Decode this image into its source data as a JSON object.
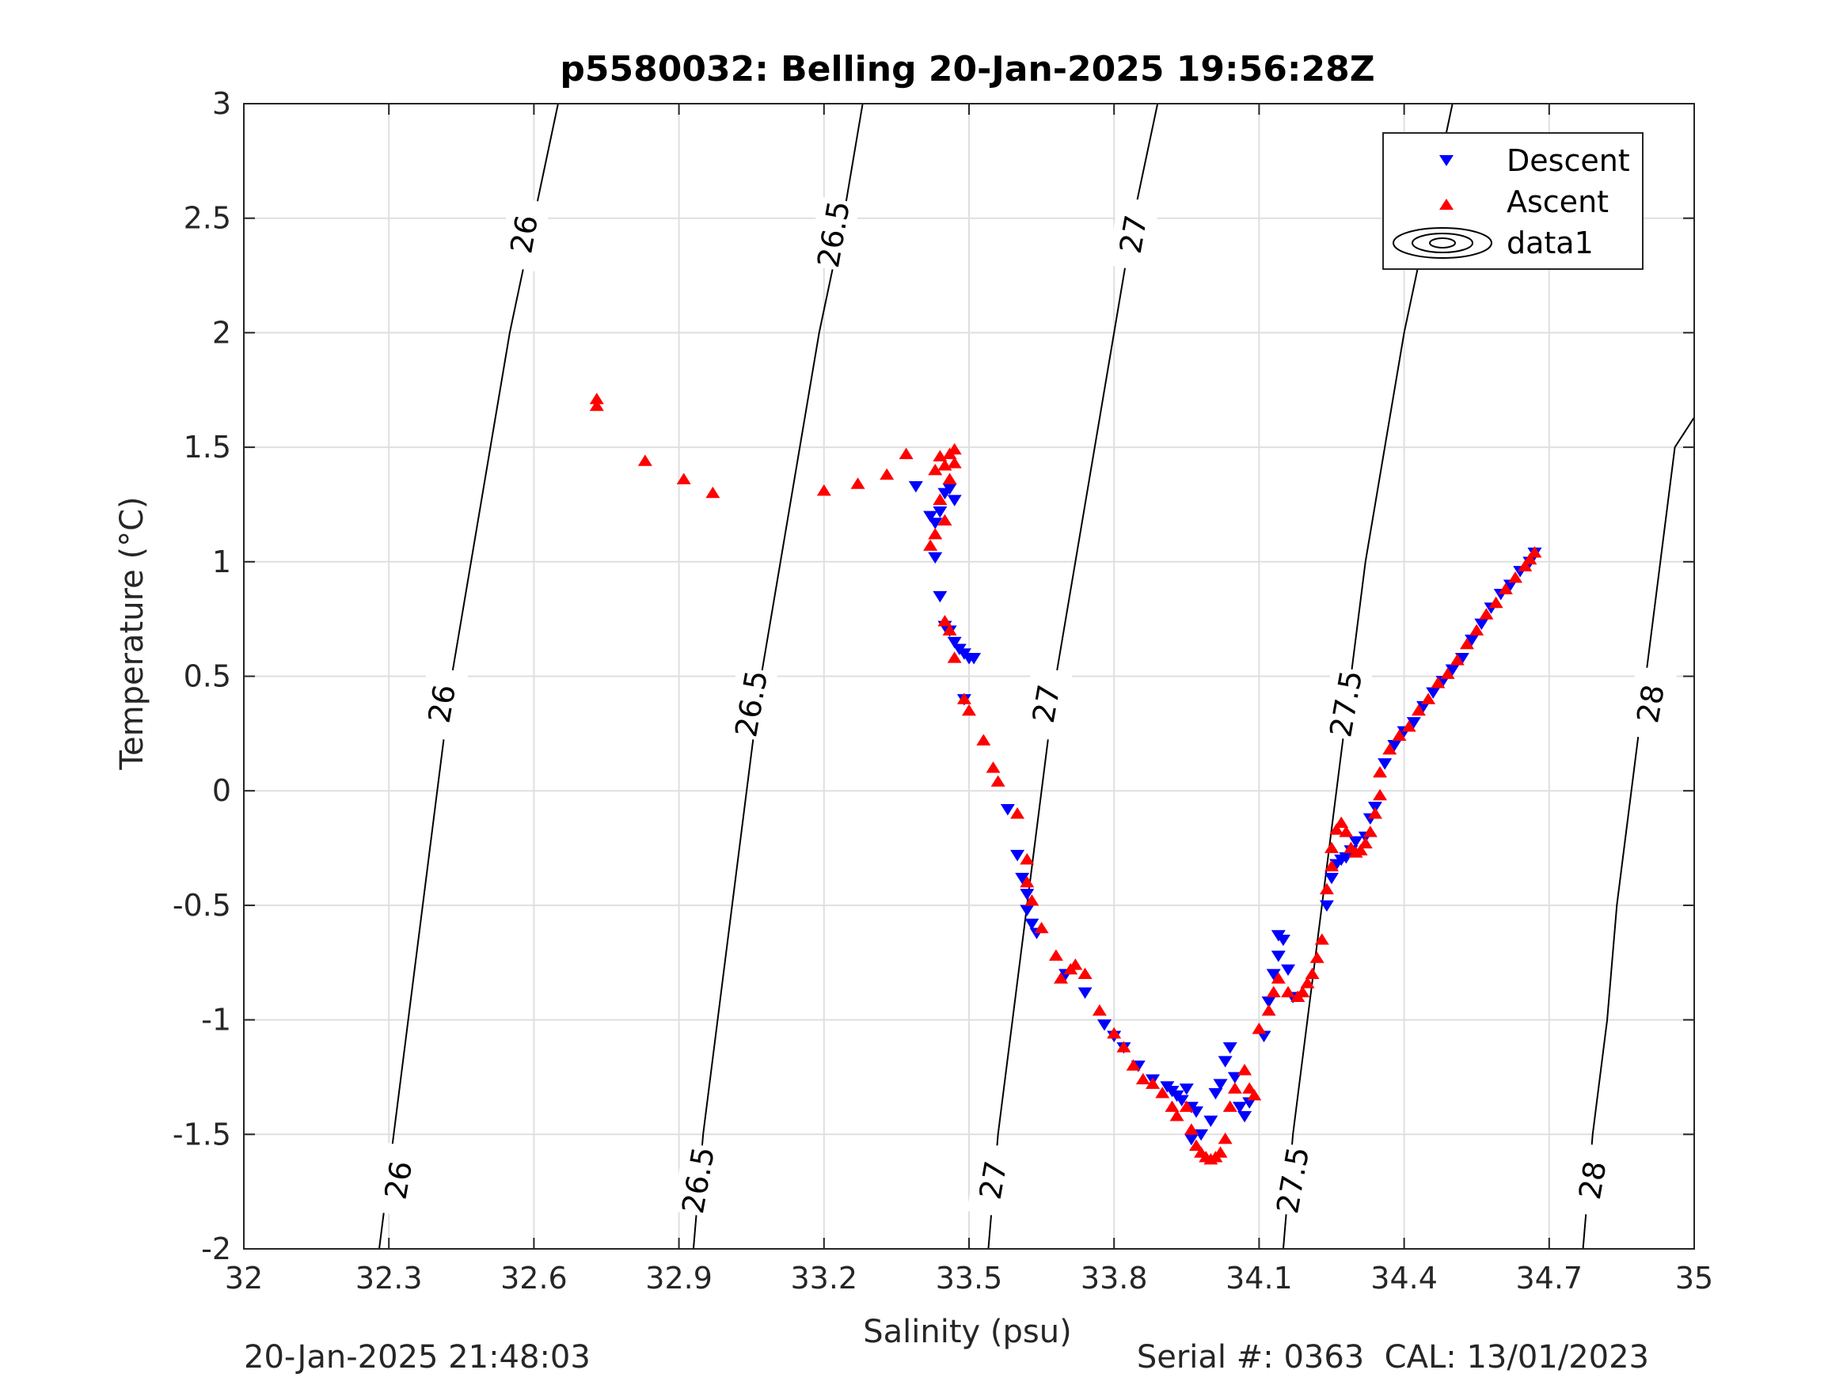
{
  "chart_data": {
    "type": "scatter",
    "title": "p5580032: Belling 20-Jan-2025 19:56:28Z",
    "xlabel": "Salinity (psu)",
    "ylabel": "Temperature (°C)",
    "xlim": [
      32,
      35
    ],
    "ylim": [
      -2,
      3
    ],
    "xticks": [
      "32",
      "32.3",
      "32.6",
      "32.9",
      "33.2",
      "33.5",
      "33.8",
      "34.1",
      "34.4",
      "34.7",
      "35"
    ],
    "yticks": [
      "3",
      "2.5",
      "2",
      "1.5",
      "1",
      "0.5",
      "0",
      "-0.5",
      "-1",
      "-1.5",
      "-2"
    ],
    "grid": true,
    "legend_position": "top-right",
    "legend": [
      "Descent",
      "Ascent",
      "data1"
    ],
    "series": [
      {
        "name": "Descent",
        "marker": "triangle-down",
        "color": "#0000ff",
        "points": [
          [
            33.39,
            1.33
          ],
          [
            33.42,
            1.2
          ],
          [
            33.43,
            1.17
          ],
          [
            33.44,
            1.22
          ],
          [
            33.45,
            1.3
          ],
          [
            33.46,
            1.32
          ],
          [
            33.47,
            1.27
          ],
          [
            33.43,
            1.02
          ],
          [
            33.44,
            0.85
          ],
          [
            33.45,
            0.72
          ],
          [
            33.46,
            0.7
          ],
          [
            33.47,
            0.65
          ],
          [
            33.48,
            0.62
          ],
          [
            33.49,
            0.6
          ],
          [
            33.5,
            0.58
          ],
          [
            33.51,
            0.58
          ],
          [
            33.49,
            0.4
          ],
          [
            33.58,
            -0.08
          ],
          [
            33.6,
            -0.28
          ],
          [
            33.61,
            -0.38
          ],
          [
            33.62,
            -0.45
          ],
          [
            33.62,
            -0.52
          ],
          [
            33.63,
            -0.58
          ],
          [
            33.64,
            -0.62
          ],
          [
            33.7,
            -0.8
          ],
          [
            33.74,
            -0.88
          ],
          [
            33.78,
            -1.02
          ],
          [
            33.8,
            -1.07
          ],
          [
            33.82,
            -1.12
          ],
          [
            33.85,
            -1.2
          ],
          [
            33.88,
            -1.26
          ],
          [
            33.91,
            -1.29
          ],
          [
            33.92,
            -1.31
          ],
          [
            33.93,
            -1.33
          ],
          [
            33.94,
            -1.35
          ],
          [
            33.95,
            -1.3
          ],
          [
            33.96,
            -1.38
          ],
          [
            33.97,
            -1.4
          ],
          [
            33.96,
            -1.52
          ],
          [
            33.98,
            -1.5
          ],
          [
            34.0,
            -1.44
          ],
          [
            34.01,
            -1.32
          ],
          [
            34.02,
            -1.28
          ],
          [
            34.03,
            -1.18
          ],
          [
            34.04,
            -1.12
          ],
          [
            34.05,
            -1.25
          ],
          [
            34.06,
            -1.38
          ],
          [
            34.07,
            -1.42
          ],
          [
            34.08,
            -1.36
          ],
          [
            34.11,
            -1.07
          ],
          [
            34.12,
            -0.92
          ],
          [
            34.13,
            -0.8
          ],
          [
            34.14,
            -0.72
          ],
          [
            34.14,
            -0.63
          ],
          [
            34.15,
            -0.65
          ],
          [
            34.16,
            -0.78
          ],
          [
            34.17,
            -0.9
          ],
          [
            34.24,
            -0.5
          ],
          [
            34.25,
            -0.38
          ],
          [
            34.26,
            -0.32
          ],
          [
            34.27,
            -0.3
          ],
          [
            34.28,
            -0.29
          ],
          [
            34.29,
            -0.26
          ],
          [
            34.3,
            -0.22
          ],
          [
            34.32,
            -0.2
          ],
          [
            34.33,
            -0.12
          ],
          [
            34.34,
            -0.07
          ],
          [
            34.36,
            0.12
          ],
          [
            34.38,
            0.2
          ],
          [
            34.4,
            0.26
          ],
          [
            34.42,
            0.3
          ],
          [
            34.44,
            0.37
          ],
          [
            34.46,
            0.43
          ],
          [
            34.48,
            0.48
          ],
          [
            34.5,
            0.53
          ],
          [
            34.52,
            0.58
          ],
          [
            34.54,
            0.66
          ],
          [
            34.56,
            0.73
          ],
          [
            34.58,
            0.8
          ],
          [
            34.6,
            0.86
          ],
          [
            34.62,
            0.9
          ],
          [
            34.64,
            0.96
          ],
          [
            34.66,
            1.0
          ],
          [
            34.67,
            1.04
          ]
        ]
      },
      {
        "name": "Ascent",
        "marker": "triangle-up",
        "color": "#ff0000",
        "points": [
          [
            32.73,
            1.71
          ],
          [
            32.73,
            1.68
          ],
          [
            32.83,
            1.44
          ],
          [
            32.91,
            1.36
          ],
          [
            32.97,
            1.3
          ],
          [
            33.2,
            1.31
          ],
          [
            33.27,
            1.34
          ],
          [
            33.33,
            1.38
          ],
          [
            33.37,
            1.47
          ],
          [
            33.43,
            1.4
          ],
          [
            33.44,
            1.46
          ],
          [
            33.45,
            1.42
          ],
          [
            33.46,
            1.47
          ],
          [
            33.47,
            1.49
          ],
          [
            33.46,
            1.36
          ],
          [
            33.47,
            1.43
          ],
          [
            33.44,
            1.27
          ],
          [
            33.45,
            1.18
          ],
          [
            33.43,
            1.12
          ],
          [
            33.42,
            1.07
          ],
          [
            33.45,
            0.74
          ],
          [
            33.46,
            0.7
          ],
          [
            33.47,
            0.58
          ],
          [
            33.49,
            0.4
          ],
          [
            33.5,
            0.35
          ],
          [
            33.53,
            0.22
          ],
          [
            33.55,
            0.1
          ],
          [
            33.56,
            0.04
          ],
          [
            33.6,
            -0.1
          ],
          [
            33.62,
            -0.3
          ],
          [
            33.62,
            -0.4
          ],
          [
            33.63,
            -0.48
          ],
          [
            33.65,
            -0.6
          ],
          [
            33.68,
            -0.72
          ],
          [
            33.69,
            -0.82
          ],
          [
            33.71,
            -0.78
          ],
          [
            33.72,
            -0.76
          ],
          [
            33.74,
            -0.8
          ],
          [
            33.77,
            -0.96
          ],
          [
            33.8,
            -1.06
          ],
          [
            33.82,
            -1.12
          ],
          [
            33.84,
            -1.2
          ],
          [
            33.86,
            -1.26
          ],
          [
            33.88,
            -1.28
          ],
          [
            33.9,
            -1.32
          ],
          [
            33.92,
            -1.38
          ],
          [
            33.93,
            -1.42
          ],
          [
            33.95,
            -1.38
          ],
          [
            33.96,
            -1.48
          ],
          [
            33.97,
            -1.55
          ],
          [
            33.98,
            -1.58
          ],
          [
            33.99,
            -1.6
          ],
          [
            34.0,
            -1.61
          ],
          [
            34.01,
            -1.6
          ],
          [
            34.02,
            -1.58
          ],
          [
            34.03,
            -1.52
          ],
          [
            34.04,
            -1.38
          ],
          [
            34.05,
            -1.3
          ],
          [
            34.07,
            -1.22
          ],
          [
            34.08,
            -1.3
          ],
          [
            34.09,
            -1.33
          ],
          [
            34.1,
            -1.04
          ],
          [
            34.12,
            -0.96
          ],
          [
            34.13,
            -0.88
          ],
          [
            34.14,
            -0.82
          ],
          [
            34.16,
            -0.88
          ],
          [
            34.18,
            -0.9
          ],
          [
            34.19,
            -0.88
          ],
          [
            34.2,
            -0.84
          ],
          [
            34.21,
            -0.8
          ],
          [
            34.22,
            -0.73
          ],
          [
            34.23,
            -0.65
          ],
          [
            34.24,
            -0.43
          ],
          [
            34.25,
            -0.33
          ],
          [
            34.25,
            -0.25
          ],
          [
            34.26,
            -0.17
          ],
          [
            34.27,
            -0.14
          ],
          [
            34.28,
            -0.18
          ],
          [
            34.29,
            -0.25
          ],
          [
            34.3,
            -0.27
          ],
          [
            34.31,
            -0.26
          ],
          [
            34.32,
            -0.23
          ],
          [
            34.33,
            -0.18
          ],
          [
            34.34,
            -0.1
          ],
          [
            34.35,
            -0.02
          ],
          [
            34.35,
            0.08
          ],
          [
            34.37,
            0.18
          ],
          [
            34.39,
            0.24
          ],
          [
            34.41,
            0.28
          ],
          [
            34.43,
            0.35
          ],
          [
            34.45,
            0.4
          ],
          [
            34.47,
            0.47
          ],
          [
            34.49,
            0.51
          ],
          [
            34.51,
            0.57
          ],
          [
            34.53,
            0.64
          ],
          [
            34.55,
            0.7
          ],
          [
            34.57,
            0.77
          ],
          [
            34.59,
            0.82
          ],
          [
            34.61,
            0.88
          ],
          [
            34.63,
            0.93
          ],
          [
            34.65,
            0.98
          ],
          [
            34.66,
            1.01
          ],
          [
            34.67,
            1.04
          ]
        ]
      }
    ],
    "contours": [
      {
        "level": "26",
        "line": [
          [
            32.28,
            -2
          ],
          [
            32.31,
            -1.5
          ],
          [
            32.34,
            -1
          ],
          [
            32.37,
            -0.5
          ],
          [
            32.4,
            0
          ],
          [
            32.43,
            0.5
          ],
          [
            32.47,
            1
          ],
          [
            32.51,
            1.5
          ],
          [
            32.55,
            2
          ],
          [
            32.6,
            2.5
          ],
          [
            32.65,
            3
          ]
        ],
        "labels": [
          [
            32.32,
            -1.7
          ],
          [
            32.41,
            0.38
          ],
          [
            32.58,
            2.43
          ]
        ]
      },
      {
        "level": "26.5",
        "line": [
          [
            32.93,
            -2
          ],
          [
            32.95,
            -1.5
          ],
          [
            32.98,
            -1
          ],
          [
            33.01,
            -0.5
          ],
          [
            33.04,
            0
          ],
          [
            33.07,
            0.5
          ],
          [
            33.11,
            1
          ],
          [
            33.15,
            1.5
          ],
          [
            33.19,
            2
          ],
          [
            33.24,
            2.5
          ],
          [
            33.28,
            3
          ]
        ],
        "labels": [
          [
            32.94,
            -1.7
          ],
          [
            33.05,
            0.38
          ],
          [
            33.22,
            2.43
          ]
        ]
      },
      {
        "level": "27",
        "line": [
          [
            33.54,
            -2
          ],
          [
            33.56,
            -1.5
          ],
          [
            33.59,
            -1
          ],
          [
            33.62,
            -0.5
          ],
          [
            33.65,
            0
          ],
          [
            33.68,
            0.5
          ],
          [
            33.72,
            1
          ],
          [
            33.76,
            1.5
          ],
          [
            33.8,
            2
          ],
          [
            33.84,
            2.5
          ],
          [
            33.89,
            3
          ]
        ],
        "labels": [
          [
            33.55,
            -1.7
          ],
          [
            33.66,
            0.38
          ],
          [
            33.84,
            2.43
          ]
        ]
      },
      {
        "level": "27.5",
        "line": [
          [
            34.15,
            -2
          ],
          [
            34.17,
            -1.5
          ],
          [
            34.2,
            -1
          ],
          [
            34.23,
            -0.5
          ],
          [
            34.26,
            0
          ],
          [
            34.29,
            0.5
          ],
          [
            34.32,
            1
          ],
          [
            34.36,
            1.5
          ],
          [
            34.4,
            2
          ],
          [
            34.45,
            2.5
          ],
          [
            34.5,
            3
          ]
        ],
        "labels": [
          [
            34.17,
            -1.7
          ],
          [
            34.28,
            0.38
          ],
          [
            34.46,
            2.43
          ]
        ]
      },
      {
        "level": "28",
        "line": [
          [
            34.77,
            -2
          ],
          [
            34.79,
            -1.5
          ],
          [
            34.82,
            -1
          ],
          [
            34.84,
            -0.5
          ],
          [
            34.87,
            0
          ],
          [
            34.9,
            0.5
          ],
          [
            34.93,
            1
          ],
          [
            34.96,
            1.5
          ],
          [
            35.0,
            1.63
          ]
        ],
        "labels": [
          [
            34.79,
            -1.7
          ],
          [
            34.91,
            0.38
          ]
        ]
      }
    ]
  },
  "footer": {
    "timestamp": "20-Jan-2025 21:48:03",
    "serial": "Serial #: 0363  CAL: 13/01/2023"
  },
  "colors": {
    "descent": "#0000ff",
    "ascent": "#ff0000",
    "grid": "#dfdfdf",
    "axis": "#262626"
  }
}
